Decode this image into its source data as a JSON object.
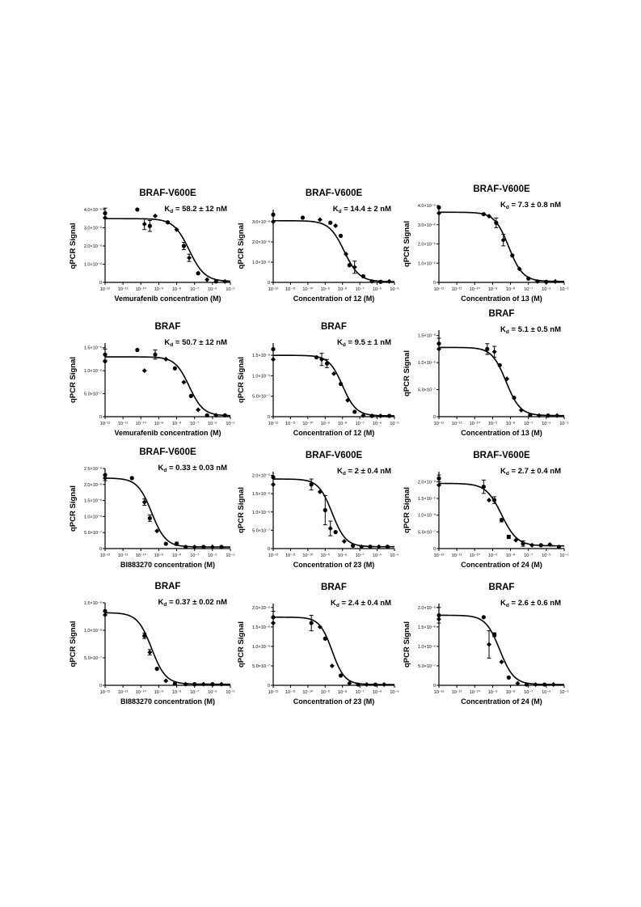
{
  "chart_data": [
    {
      "id": "r1c1",
      "type": "scatter",
      "title": "BRAF-V600E",
      "kd_text": "K_d = 58.2 ± 12 nM",
      "xlabel": "Vemurafenib concentration (M)",
      "ylabel": "qPCR Signal",
      "x_ticks": [
        "10⁻¹²",
        "10⁻¹¹",
        "10⁻¹⁰",
        "10⁻⁹",
        "10⁻⁸",
        "10⁻⁷",
        "10⁻⁶",
        "10⁻⁵"
      ],
      "y_ticks": [
        "0",
        "1.0×10⁻⁶",
        "2.0×10⁻⁶",
        "3.0×10⁻⁶",
        "4.0×10⁻⁶"
      ],
      "xlim": [
        -12,
        -5
      ],
      "ylim": [
        0,
        4.0
      ],
      "fit": {
        "top": 3.5,
        "bottom": 0.05,
        "log_ic50": -7.3,
        "hill": 1
      },
      "points": [
        {
          "x": -12,
          "y": 3.8,
          "err": 0.28
        },
        {
          "x": -12,
          "y": 3.55
        },
        {
          "x": -10.2,
          "y": 4.0
        },
        {
          "x": -9.8,
          "y": 3.2,
          "err": 0.3
        },
        {
          "x": -9.5,
          "y": 3.1,
          "err": 0.3
        },
        {
          "x": -9.2,
          "y": 3.65
        },
        {
          "x": -8.5,
          "y": 3.3
        },
        {
          "x": -8,
          "y": 2.9
        },
        {
          "x": -7.6,
          "y": 2.0,
          "err": 0.2
        },
        {
          "x": -7.3,
          "y": 1.35,
          "err": 0.2
        },
        {
          "x": -6.8,
          "y": 0.5
        },
        {
          "x": -6.3,
          "y": 0.15
        },
        {
          "x": -5.8,
          "y": 0.05
        },
        {
          "x": -5.3,
          "y": 0.05
        }
      ]
    },
    {
      "id": "r1c2",
      "type": "scatter",
      "title": "BRAF-V600E",
      "kd_text": "K_d = 14.4 ± 2 nM",
      "xlabel": "Concentration of 12 (M)",
      "ylabel": "qPCR Signal",
      "x_ticks": [
        "10⁻¹²",
        "10⁻¹¹",
        "10⁻¹⁰",
        "10⁻⁹",
        "10⁻⁸",
        "10⁻⁷",
        "10⁻⁶",
        "10⁻⁵"
      ],
      "y_ticks": [
        "0",
        "1.0×10⁻⁶",
        "2.0×10⁻⁶",
        "3.0×10⁻⁶"
      ],
      "xlim": [
        -12,
        -5
      ],
      "ylim": [
        0,
        3.6
      ],
      "fit": {
        "top": 3.05,
        "bottom": 0.03,
        "log_ic50": -7.9,
        "hill": 1
      },
      "points": [
        {
          "x": -12,
          "y": 3.35
        },
        {
          "x": -12,
          "y": 3.0
        },
        {
          "x": -10.3,
          "y": 3.2
        },
        {
          "x": -9.3,
          "y": 3.1
        },
        {
          "x": -8.7,
          "y": 2.95
        },
        {
          "x": -8.4,
          "y": 2.8
        },
        {
          "x": -8.1,
          "y": 2.3
        },
        {
          "x": -7.8,
          "y": 1.4
        },
        {
          "x": -7.6,
          "y": 0.85
        },
        {
          "x": -7.3,
          "y": 0.75,
          "err": 0.3
        },
        {
          "x": -6.8,
          "y": 0.3
        },
        {
          "x": -6.3,
          "y": 0.05
        },
        {
          "x": -5.8,
          "y": 0.03
        },
        {
          "x": -5.3,
          "y": 0.05
        }
      ]
    },
    {
      "id": "r1c3",
      "type": "scatter",
      "title": "BRAF-V600E",
      "kd_text": "K_d = 7.3 ± 0.8 nM",
      "xlabel": "Concentration of 13 (M)",
      "ylabel": "qPCR Signal",
      "x_ticks": [
        "10⁻¹²",
        "10⁻¹¹",
        "10⁻¹⁰",
        "10⁻⁹",
        "10⁻⁸",
        "10⁻⁷",
        "10⁻⁶",
        "10⁻⁵"
      ],
      "y_ticks": [
        "0",
        "1.0×10⁻⁶",
        "2.0×10⁻⁶",
        "3.0×10⁻⁶",
        "4.0×10⁻⁶"
      ],
      "xlim": [
        -12,
        -5
      ],
      "ylim": [
        0,
        4.0
      ],
      "fit": {
        "top": 3.65,
        "bottom": 0.05,
        "log_ic50": -8.1,
        "hill": 1.1
      },
      "points": [
        {
          "x": -12,
          "y": 3.9
        },
        {
          "x": -12,
          "y": 3.6
        },
        {
          "x": -9.5,
          "y": 3.55
        },
        {
          "x": -9.2,
          "y": 3.45
        },
        {
          "x": -8.8,
          "y": 3.1,
          "err": 0.25
        },
        {
          "x": -8.4,
          "y": 2.2,
          "err": 0.3
        },
        {
          "x": -7.9,
          "y": 1.4
        },
        {
          "x": -7.5,
          "y": 0.7
        },
        {
          "x": -7,
          "y": 0.2
        },
        {
          "x": -6.5,
          "y": 0.05
        },
        {
          "x": -6,
          "y": 0.03
        },
        {
          "x": -5.5,
          "y": 0.05
        }
      ]
    },
    {
      "id": "r2c1",
      "type": "scatter",
      "title": "BRAF",
      "kd_text": "K_d = 50.7 ± 12 nM",
      "xlabel": "Vemurafenib concentration (M)",
      "ylabel": "qPCR Signal",
      "x_ticks": [
        "10⁻¹²",
        "10⁻¹¹",
        "10⁻¹⁰",
        "10⁻⁹",
        "10⁻⁸",
        "10⁻⁷",
        "10⁻⁶",
        "10⁻⁵"
      ],
      "y_ticks": [
        "0",
        "5.0×10⁻⁷",
        "1.0×10⁻⁶",
        "1.5×10⁻⁶"
      ],
      "xlim": [
        -12,
        -5
      ],
      "ylim": [
        0,
        1.6
      ],
      "fit": {
        "top": 1.3,
        "bottom": 0.02,
        "log_ic50": -7.3,
        "hill": 1.1
      },
      "points": [
        {
          "x": -12,
          "y": 1.35,
          "err": 0.12
        },
        {
          "x": -12,
          "y": 1.2
        },
        {
          "x": -10.2,
          "y": 1.45
        },
        {
          "x": -9.8,
          "y": 1.0
        },
        {
          "x": -9.2,
          "y": 1.35,
          "err": 0.1
        },
        {
          "x": -8.6,
          "y": 1.25
        },
        {
          "x": -8.1,
          "y": 1.05
        },
        {
          "x": -7.6,
          "y": 0.75
        },
        {
          "x": -7.2,
          "y": 0.45
        },
        {
          "x": -6.8,
          "y": 0.15
        },
        {
          "x": -6.3,
          "y": 0.03
        },
        {
          "x": -5.8,
          "y": 0.03
        },
        {
          "x": -5.3,
          "y": 0.03
        }
      ]
    },
    {
      "id": "r2c2",
      "type": "scatter",
      "title": "BRAF",
      "kd_text": "K_d = 9.5 ± 1 nM",
      "xlabel": "Concentration of 12 (M)",
      "ylabel": "qPCR Signal",
      "x_ticks": [
        "10⁻¹²",
        "10⁻¹¹",
        "10⁻¹⁰",
        "10⁻⁹",
        "10⁻⁸",
        "10⁻⁷",
        "10⁻⁶",
        "10⁻⁵"
      ],
      "y_ticks": [
        "0",
        "5.0×10⁻⁷",
        "1.0×10⁻⁶",
        "1.5×10⁻⁶"
      ],
      "xlim": [
        -12,
        -5
      ],
      "ylim": [
        0,
        1.8
      ],
      "fit": {
        "top": 1.5,
        "bottom": 0.02,
        "log_ic50": -8.0,
        "hill": 1.1
      },
      "points": [
        {
          "x": -12,
          "y": 1.65
        },
        {
          "x": -12,
          "y": 1.4
        },
        {
          "x": -9.5,
          "y": 1.45
        },
        {
          "x": -9.2,
          "y": 1.4,
          "err": 0.15
        },
        {
          "x": -8.9,
          "y": 1.3,
          "err": 0.1
        },
        {
          "x": -8.5,
          "y": 1.05
        },
        {
          "x": -8.1,
          "y": 0.8
        },
        {
          "x": -7.7,
          "y": 0.4
        },
        {
          "x": -7.3,
          "y": 0.12
        },
        {
          "x": -6.8,
          "y": 0.03
        },
        {
          "x": -6.3,
          "y": 0.02
        },
        {
          "x": -5.8,
          "y": 0.02
        },
        {
          "x": -5.3,
          "y": 0.02
        }
      ]
    },
    {
      "id": "r2c3",
      "type": "scatter",
      "title": "BRAF",
      "kd_text": "K_d = 5.1 ± 0.5 nM",
      "xlabel": "Concentration of 13 (M)",
      "ylabel": "qPCR Signal",
      "x_ticks": [
        "10⁻¹²",
        "10⁻¹¹",
        "10⁻¹⁰",
        "10⁻⁹",
        "10⁻⁸",
        "10⁻⁷",
        "10⁻⁶",
        "10⁻⁵"
      ],
      "y_ticks": [
        "0",
        "5.0×10⁻⁷",
        "1.0×10⁻⁶",
        "1.5×10⁻⁶"
      ],
      "xlim": [
        -12,
        -5
      ],
      "ylim": [
        0,
        1.6
      ],
      "fit": {
        "top": 1.28,
        "bottom": 0.02,
        "log_ic50": -8.25,
        "hill": 1.1
      },
      "points": [
        {
          "x": -12,
          "y": 1.35,
          "err": 0.1
        },
        {
          "x": -12,
          "y": 1.25
        },
        {
          "x": -9.3,
          "y": 1.25,
          "err": 0.1
        },
        {
          "x": -8.9,
          "y": 1.2,
          "err": 0.1
        },
        {
          "x": -8.6,
          "y": 0.95
        },
        {
          "x": -8.2,
          "y": 0.7
        },
        {
          "x": -7.8,
          "y": 0.35
        },
        {
          "x": -7.4,
          "y": 0.12
        },
        {
          "x": -6.9,
          "y": 0.03
        },
        {
          "x": -6.4,
          "y": 0.02
        },
        {
          "x": -5.9,
          "y": 0.02
        },
        {
          "x": -5.4,
          "y": 0.02
        }
      ]
    },
    {
      "id": "r3c1",
      "type": "scatter",
      "title": "BRAF-V600E",
      "kd_text": "K_d = 0.33 ± 0.03 nM",
      "xlabel": "BI883270 concentration (M)",
      "ylabel": "qPCR Signal",
      "x_ticks": [
        "10⁻¹²",
        "10⁻¹¹",
        "10⁻¹⁰",
        "10⁻⁹",
        "10⁻⁸",
        "10⁻⁷",
        "10⁻⁶",
        "10⁻⁵"
      ],
      "y_ticks": [
        "0",
        "5.0×10⁻⁷",
        "1.0×10⁻⁶",
        "1.5×10⁻⁶",
        "2.0×10⁻⁶",
        "2.5×10⁻⁶"
      ],
      "xlim": [
        -12,
        -5
      ],
      "ylim": [
        0,
        2.5
      ],
      "fit": {
        "top": 2.2,
        "bottom": 0.05,
        "log_ic50": -9.4,
        "hill": 1.1
      },
      "points": [
        {
          "x": -12,
          "y": 2.3
        },
        {
          "x": -12,
          "y": 2.2,
          "err": 0.08
        },
        {
          "x": -10.5,
          "y": 2.2
        },
        {
          "x": -9.8,
          "y": 1.45,
          "err": 0.1
        },
        {
          "x": -9.5,
          "y": 0.95,
          "err": 0.1
        },
        {
          "x": -9.1,
          "y": 0.55
        },
        {
          "x": -8.6,
          "y": 0.15
        },
        {
          "x": -8,
          "y": 0.15,
          "err": 0.05
        },
        {
          "x": -7.5,
          "y": 0.05
        },
        {
          "x": -7,
          "y": 0.05
        },
        {
          "x": -6.5,
          "y": 0.05
        },
        {
          "x": -6,
          "y": 0.05
        },
        {
          "x": -5.5,
          "y": 0.05
        }
      ]
    },
    {
      "id": "r3c2",
      "type": "scatter",
      "title": "BRAF-V600E",
      "kd_text": "K_d = 2 ± 0.4 nM",
      "xlabel": "Concentration of 23 (M)",
      "ylabel": "qPCR Signal",
      "x_ticks": [
        "10⁻¹²",
        "10⁻¹¹",
        "10⁻¹⁰",
        "10⁻⁹",
        "10⁻⁸",
        "10⁻⁷",
        "10⁻⁶",
        "10⁻⁵"
      ],
      "y_ticks": [
        "0",
        "5.0×10⁻⁷",
        "1.0×10⁻⁶",
        "1.5×10⁻⁶",
        "2.0×10⁻⁶"
      ],
      "xlim": [
        -12,
        -5
      ],
      "ylim": [
        0,
        2.1
      ],
      "fit": {
        "top": 1.9,
        "bottom": 0.05,
        "log_ic50": -8.6,
        "hill": 1.1
      },
      "points": [
        {
          "x": -12,
          "y": 1.95
        },
        {
          "x": -12,
          "y": 1.75
        },
        {
          "x": -9.8,
          "y": 1.75,
          "err": 0.15
        },
        {
          "x": -9.3,
          "y": 1.55
        },
        {
          "x": -9,
          "y": 1.05,
          "err": 0.4
        },
        {
          "x": -8.7,
          "y": 0.55,
          "err": 0.2
        },
        {
          "x": -8.4,
          "y": 0.45
        },
        {
          "x": -7.9,
          "y": 0.2
        },
        {
          "x": -7.4,
          "y": 0.08
        },
        {
          "x": -6.9,
          "y": 0.05
        },
        {
          "x": -6.4,
          "y": 0.05
        },
        {
          "x": -5.9,
          "y": 0.05
        },
        {
          "x": -5.4,
          "y": 0.05
        }
      ]
    },
    {
      "id": "r3c3",
      "type": "scatter",
      "title": "BRAF-V600E",
      "kd_text": "K_d = 2.7 ± 0.4 nM",
      "xlabel": "Concentration of 24 (M)",
      "ylabel": "qPCR Signal",
      "x_ticks": [
        "10⁻¹²",
        "10⁻¹¹",
        "10⁻¹⁰",
        "10⁻⁹",
        "10⁻⁸",
        "10⁻⁷",
        "10⁻⁶",
        "10⁻⁵"
      ],
      "y_ticks": [
        "0",
        "5.0×10⁻⁷",
        "1.0×10⁻⁶",
        "1.5×10⁻⁶",
        "2.0×10⁻⁶"
      ],
      "xlim": [
        -12,
        -5
      ],
      "ylim": [
        0,
        2.3
      ],
      "fit": {
        "top": 1.95,
        "bottom": 0.08,
        "log_ic50": -8.5,
        "hill": 1.0
      },
      "points": [
        {
          "x": -12,
          "y": 2.1,
          "err": 0.1
        },
        {
          "x": -12,
          "y": 1.9
        },
        {
          "x": -9.5,
          "y": 1.85,
          "err": 0.2
        },
        {
          "x": -9.2,
          "y": 1.45
        },
        {
          "x": -8.9,
          "y": 1.45,
          "err": 0.1
        },
        {
          "x": -8.5,
          "y": 0.85,
          "err": 0.05
        },
        {
          "x": -8.1,
          "y": 0.35,
          "err": 0.05
        },
        {
          "x": -7.7,
          "y": 0.25
        },
        {
          "x": -7.3,
          "y": 0.15,
          "err": 0.08
        },
        {
          "x": -6.8,
          "y": 0.1
        },
        {
          "x": -6.3,
          "y": 0.1
        },
        {
          "x": -5.8,
          "y": 0.12
        },
        {
          "x": -5.3,
          "y": 0.05
        }
      ]
    },
    {
      "id": "r4c1",
      "type": "scatter",
      "title": "BRAF",
      "kd_text": "K_d = 0.37 ± 0.02 nM",
      "xlabel": "BI883270 concentration (M)",
      "ylabel": "qPCR Signal",
      "x_ticks": [
        "10⁻¹²",
        "10⁻¹¹",
        "10⁻¹⁰",
        "10⁻⁹",
        "10⁻⁸",
        "10⁻⁷",
        "10⁻⁶",
        "10⁻⁵"
      ],
      "y_ticks": [
        "0",
        "5.0×10⁻⁷",
        "1.0×10⁻⁶",
        "1.5×10⁻⁶"
      ],
      "xlim": [
        -12,
        -5
      ],
      "ylim": [
        0,
        1.5
      ],
      "fit": {
        "top": 1.32,
        "bottom": 0.02,
        "log_ic50": -9.4,
        "hill": 1.1
      },
      "points": [
        {
          "x": -12,
          "y": 1.35
        },
        {
          "x": -12,
          "y": 1.28
        },
        {
          "x": -9.8,
          "y": 0.9,
          "err": 0.05
        },
        {
          "x": -9.5,
          "y": 0.6,
          "err": 0.05
        },
        {
          "x": -9.1,
          "y": 0.3
        },
        {
          "x": -8.6,
          "y": 0.08
        },
        {
          "x": -8.1,
          "y": 0.03
        },
        {
          "x": -7.5,
          "y": 0.02
        },
        {
          "x": -7,
          "y": 0.02
        },
        {
          "x": -6.5,
          "y": 0.02
        },
        {
          "x": -6,
          "y": 0.02
        },
        {
          "x": -5.5,
          "y": 0.02
        }
      ]
    },
    {
      "id": "r4c2",
      "type": "scatter",
      "title": "BRAF",
      "kd_text": "K_d = 2.4 ± 0.4 nM",
      "xlabel": "Concentration of 23 (M)",
      "ylabel": "qPCR Signal",
      "x_ticks": [
        "10⁻¹²",
        "10⁻¹¹",
        "10⁻¹⁰",
        "10⁻⁹",
        "10⁻⁸",
        "10⁻⁷",
        "10⁻⁶",
        "10⁻⁵"
      ],
      "y_ticks": [
        "0",
        "5.0×10⁻⁷",
        "1.0×10⁻⁶",
        "1.5×10⁻⁶",
        "2.0×10⁻⁶"
      ],
      "xlim": [
        -12,
        -5
      ],
      "ylim": [
        0,
        2.1
      ],
      "fit": {
        "top": 1.75,
        "bottom": 0.02,
        "log_ic50": -8.6,
        "hill": 1.2
      },
      "points": [
        {
          "x": -12,
          "y": 1.75,
          "err": 0.15
        },
        {
          "x": -12,
          "y": 1.6
        },
        {
          "x": -9.8,
          "y": 1.6,
          "err": 0.2
        },
        {
          "x": -9.3,
          "y": 1.5
        },
        {
          "x": -9,
          "y": 1.2
        },
        {
          "x": -8.6,
          "y": 0.5
        },
        {
          "x": -8.1,
          "y": 0.25
        },
        {
          "x": -7.6,
          "y": 0.05
        },
        {
          "x": -7.1,
          "y": 0.02
        },
        {
          "x": -6.6,
          "y": 0.02
        },
        {
          "x": -6.1,
          "y": 0.02
        },
        {
          "x": -5.6,
          "y": 0.02
        }
      ]
    },
    {
      "id": "r4c3",
      "type": "scatter",
      "title": "BRAF",
      "kd_text": "K_d = 2.6 ± 0.6 nM",
      "xlabel": "Concentration of 24 (M)",
      "ylabel": "qPCR Signal",
      "x_ticks": [
        "10⁻¹²",
        "10⁻¹¹",
        "10⁻¹⁰",
        "10⁻⁹",
        "10⁻⁸",
        "10⁻⁷",
        "10⁻⁶",
        "10⁻⁵"
      ],
      "y_ticks": [
        "0",
        "5.0×10⁻⁷",
        "1.0×10⁻⁶",
        "1.5×10⁻⁶",
        "2.0×10⁻⁶"
      ],
      "xlim": [
        -12,
        -5
      ],
      "ylim": [
        0,
        2.1
      ],
      "fit": {
        "top": 1.8,
        "bottom": 0.02,
        "log_ic50": -8.6,
        "hill": 1.1
      },
      "points": [
        {
          "x": -12,
          "y": 1.8,
          "err": 0.2
        },
        {
          "x": -12,
          "y": 1.7
        },
        {
          "x": -9.5,
          "y": 1.75
        },
        {
          "x": -9.2,
          "y": 1.05,
          "err": 0.35
        },
        {
          "x": -8.9,
          "y": 1.3,
          "err": 0.05
        },
        {
          "x": -8.5,
          "y": 0.6
        },
        {
          "x": -8.1,
          "y": 0.2
        },
        {
          "x": -7.6,
          "y": 0.05
        },
        {
          "x": -7.1,
          "y": 0.02
        },
        {
          "x": -6.6,
          "y": 0.02
        },
        {
          "x": -6.1,
          "y": 0.02
        },
        {
          "x": -5.6,
          "y": 0.02
        }
      ]
    }
  ]
}
